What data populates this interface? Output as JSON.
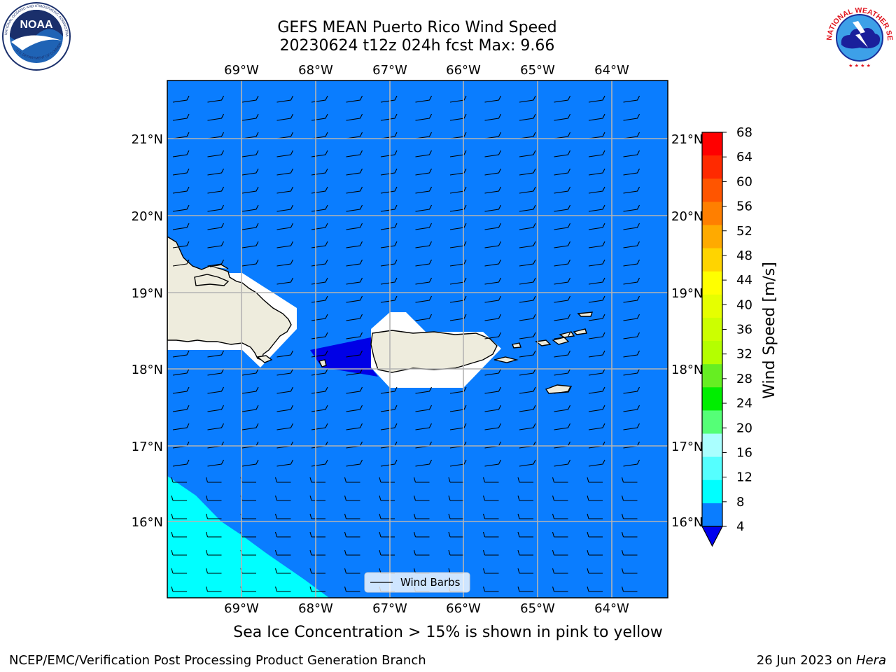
{
  "title": {
    "line1": "GEFS MEAN Puerto Rico Wind Speed",
    "line2": "20230624 t12z 024h fcst   Max: 9.66"
  },
  "logos": {
    "noaa": {
      "text": "NOAA",
      "ring_text": "NATIONAL OCEANIC AND ATMOSPHERIC ADMINISTRATION",
      "ring_text_bottom": "U.S. DEPARTMENT OF COMMERCE"
    },
    "nws": {
      "ring_text": "NATIONAL WEATHER SERVICE"
    }
  },
  "map": {
    "lon_labels": [
      "69°W",
      "68°W",
      "67°W",
      "66°W",
      "65°W",
      "64°W"
    ],
    "lat_labels": [
      "21°N",
      "20°N",
      "19°N",
      "18°N",
      "17°N",
      "16°N"
    ],
    "colors": {
      "ocean": "#0a7dff",
      "cyan": "#00ffff",
      "land": "#eeecdd",
      "low": "#0000e6",
      "grid": "#b4b4b4"
    },
    "legend_label": "Wind Barbs"
  },
  "colorbar": {
    "label": "Wind Speed [m/s]",
    "ticks": [
      "68",
      "64",
      "60",
      "56",
      "52",
      "48",
      "44",
      "40",
      "36",
      "32",
      "28",
      "24",
      "20",
      "16",
      "12",
      "8",
      "4"
    ],
    "colors": [
      "#ff0000",
      "#ff2a00",
      "#ff5500",
      "#ff7f00",
      "#ffaa00",
      "#ffd400",
      "#ffff00",
      "#e6ff00",
      "#ccff00",
      "#b4ff00",
      "#66ee22",
      "#00ee00",
      "#55ff77",
      "#aaffff",
      "#55ffff",
      "#00ffff",
      "#0a7dff"
    ],
    "extend_color": "#0000ee"
  },
  "caption": "Sea Ice Concentration > 15% is shown in pink to yellow",
  "footer": {
    "credit": "NCEP/EMC/Verification Post Processing Product Generation Branch",
    "date": "26 Jun 2023 on ",
    "machine": "Hera"
  }
}
